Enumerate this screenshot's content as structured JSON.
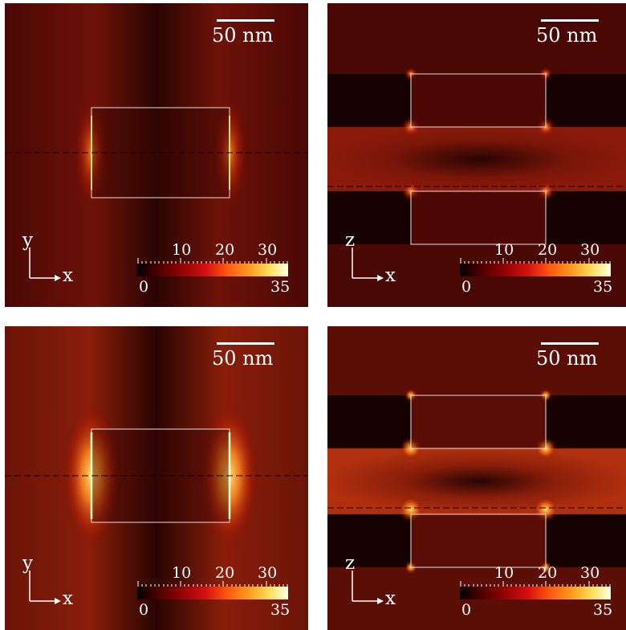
{
  "panels": [
    {
      "id": "top-left",
      "scalebar": "50 nm",
      "axis_vertical": "y",
      "axis_horizontal": "x",
      "colorbar": {
        "ticks": [
          "10",
          "20",
          "30"
        ],
        "min": "0",
        "max": "35"
      }
    },
    {
      "id": "top-right",
      "scalebar": "50 nm",
      "axis_vertical": "z",
      "axis_horizontal": "x",
      "colorbar": {
        "ticks": [
          "10",
          "20",
          "30"
        ],
        "min": "0",
        "max": "35"
      }
    },
    {
      "id": "bottom-left",
      "scalebar": "50 nm",
      "axis_vertical": "y",
      "axis_horizontal": "x",
      "colorbar": {
        "ticks": [
          "10",
          "20",
          "30"
        ],
        "min": "0",
        "max": "35"
      }
    },
    {
      "id": "bottom-right",
      "scalebar": "50 nm",
      "axis_vertical": "z",
      "axis_horizontal": "x",
      "colorbar": {
        "ticks": [
          "10",
          "20",
          "30"
        ],
        "min": "0",
        "max": "35"
      }
    }
  ],
  "colors": {
    "background_field": "#5a0a05",
    "outline": "#e8e0d8",
    "hot": "#ffe070"
  }
}
